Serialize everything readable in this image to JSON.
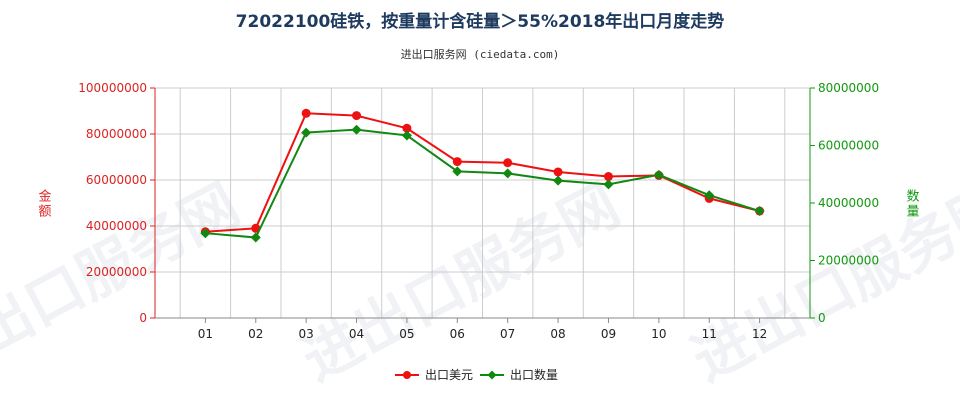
{
  "header": {
    "title": "72022100硅铁，按重量计含硅量＞55%2018年出口月度走势",
    "subtitle": "进出口服务网 (ciedata.com)"
  },
  "watermark": "进出口服务网",
  "colors": {
    "value_series": "#ee1111",
    "quantity_series": "#118811",
    "left_axis": "#dd2222",
    "right_axis": "#119911",
    "grid": "#cccccc"
  },
  "chart_data": {
    "type": "line",
    "categories": [
      "01",
      "02",
      "03",
      "04",
      "05",
      "06",
      "07",
      "08",
      "09",
      "10",
      "11",
      "12"
    ],
    "left_axis": {
      "label": "金额",
      "ylim": [
        0,
        100000000
      ],
      "ticks": [
        "0",
        "20000000",
        "40000000",
        "60000000",
        "80000000",
        "100000000"
      ]
    },
    "right_axis": {
      "label": "数量",
      "ylim": [
        0,
        80000000
      ],
      "ticks": [
        "0",
        "20000000",
        "40000000",
        "60000000",
        "80000000"
      ]
    },
    "series": [
      {
        "name": "出口美元",
        "axis": "left",
        "values": [
          37500000,
          39000000,
          89000000,
          88000000,
          82500000,
          68000000,
          67500000,
          63500000,
          61500000,
          62000000,
          52000000,
          46500000
        ]
      },
      {
        "name": "出口数量",
        "axis": "right",
        "values": [
          29500000,
          28000000,
          64500000,
          65500000,
          63500000,
          51000000,
          50300000,
          47800000,
          46500000,
          49800000,
          42700000,
          37200000
        ]
      }
    ],
    "grid": true,
    "legend": "bottom-center"
  }
}
